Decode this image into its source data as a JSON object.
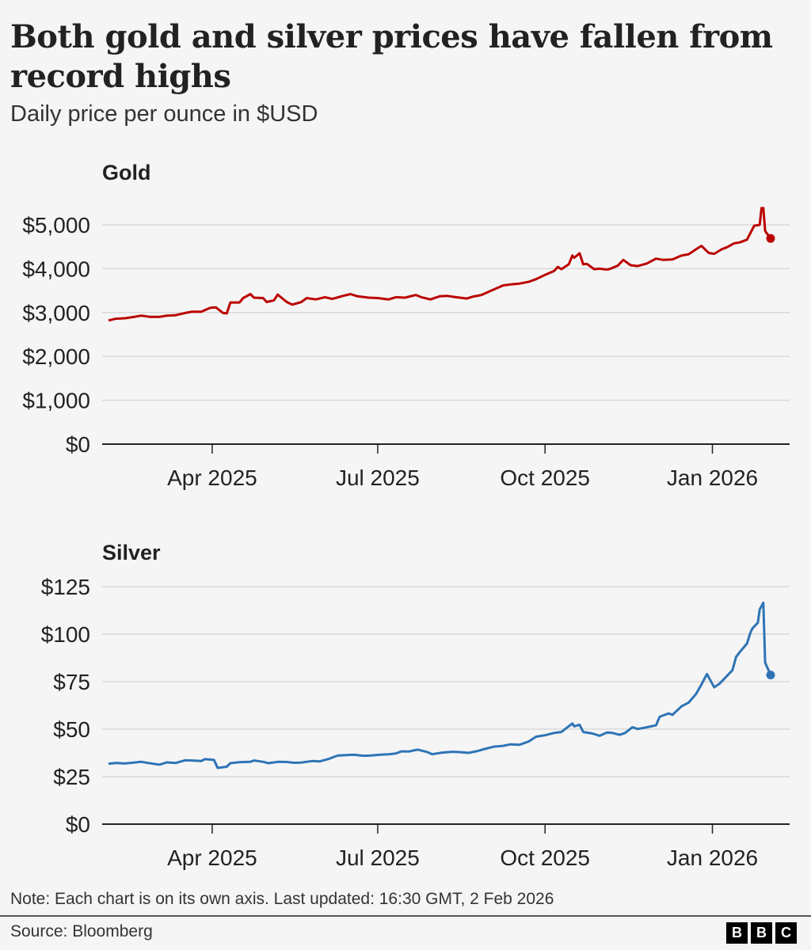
{
  "title": "Both gold and silver prices have fallen from record highs",
  "subtitle": "Daily price per ounce in $USD",
  "note": "Note: Each chart is on its own axis. Last updated: 16:30 GMT, 2 Feb 2026",
  "source": "Source: Bloomberg",
  "logo": [
    "B",
    "B",
    "C"
  ],
  "chart_data": [
    {
      "type": "line",
      "title": "Gold",
      "color": "#bb0000",
      "xlabel": "",
      "ylabel": "",
      "x_range": [
        "2025-02-03",
        "2026-02-02"
      ],
      "x_ticks": [
        {
          "date": "2025-04-01",
          "label": "Apr 2025"
        },
        {
          "date": "2025-07-01",
          "label": "Jul 2025"
        },
        {
          "date": "2025-10-01",
          "label": "Oct 2025"
        },
        {
          "date": "2026-01-01",
          "label": "Jan 2026"
        }
      ],
      "ylim": [
        0,
        5000
      ],
      "y_ticks": [
        {
          "value": 0,
          "label": "$0"
        },
        {
          "value": 1000,
          "label": "$1,000"
        },
        {
          "value": 2000,
          "label": "$2,000"
        },
        {
          "value": 3000,
          "label": "$3,000"
        },
        {
          "value": 4000,
          "label": "$4,000"
        },
        {
          "value": 5000,
          "label": "$5,000"
        }
      ],
      "grid": true,
      "end_marker": true,
      "series": [
        {
          "name": "Gold",
          "points": [
            [
              "2025-02-03",
              2820
            ],
            [
              "2025-02-07",
              2860
            ],
            [
              "2025-02-12",
              2870
            ],
            [
              "2025-02-17",
              2900
            ],
            [
              "2025-02-21",
              2930
            ],
            [
              "2025-02-26",
              2900
            ],
            [
              "2025-03-03",
              2900
            ],
            [
              "2025-03-07",
              2930
            ],
            [
              "2025-03-12",
              2940
            ],
            [
              "2025-03-17",
              2990
            ],
            [
              "2025-03-21",
              3020
            ],
            [
              "2025-03-26",
              3020
            ],
            [
              "2025-03-31",
              3110
            ],
            [
              "2025-04-03",
              3120
            ],
            [
              "2025-04-07",
              2990
            ],
            [
              "2025-04-09",
              2980
            ],
            [
              "2025-04-11",
              3230
            ],
            [
              "2025-04-16",
              3230
            ],
            [
              "2025-04-18",
              3330
            ],
            [
              "2025-04-22",
              3420
            ],
            [
              "2025-04-24",
              3340
            ],
            [
              "2025-04-29",
              3330
            ],
            [
              "2025-05-01",
              3240
            ],
            [
              "2025-05-05",
              3280
            ],
            [
              "2025-05-07",
              3410
            ],
            [
              "2025-05-12",
              3240
            ],
            [
              "2025-05-15",
              3180
            ],
            [
              "2025-05-20",
              3240
            ],
            [
              "2025-05-23",
              3330
            ],
            [
              "2025-05-28",
              3300
            ],
            [
              "2025-06-02",
              3350
            ],
            [
              "2025-06-06",
              3310
            ],
            [
              "2025-06-12",
              3380
            ],
            [
              "2025-06-16",
              3420
            ],
            [
              "2025-06-20",
              3370
            ],
            [
              "2025-06-26",
              3340
            ],
            [
              "2025-07-01",
              3330
            ],
            [
              "2025-07-07",
              3300
            ],
            [
              "2025-07-11",
              3350
            ],
            [
              "2025-07-16",
              3340
            ],
            [
              "2025-07-22",
              3400
            ],
            [
              "2025-07-25",
              3350
            ],
            [
              "2025-07-30",
              3300
            ],
            [
              "2025-08-04",
              3370
            ],
            [
              "2025-08-08",
              3380
            ],
            [
              "2025-08-13",
              3350
            ],
            [
              "2025-08-19",
              3320
            ],
            [
              "2025-08-22",
              3360
            ],
            [
              "2025-08-27",
              3400
            ],
            [
              "2025-09-02",
              3510
            ],
            [
              "2025-09-08",
              3620
            ],
            [
              "2025-09-12",
              3640
            ],
            [
              "2025-09-17",
              3660
            ],
            [
              "2025-09-22",
              3700
            ],
            [
              "2025-09-26",
              3760
            ],
            [
              "2025-10-01",
              3860
            ],
            [
              "2025-10-06",
              3950
            ],
            [
              "2025-10-08",
              4040
            ],
            [
              "2025-10-10",
              3990
            ],
            [
              "2025-10-14",
              4100
            ],
            [
              "2025-10-16",
              4300
            ],
            [
              "2025-10-17",
              4250
            ],
            [
              "2025-10-20",
              4350
            ],
            [
              "2025-10-22",
              4100
            ],
            [
              "2025-10-24",
              4110
            ],
            [
              "2025-10-28",
              3990
            ],
            [
              "2025-10-31",
              4000
            ],
            [
              "2025-11-04",
              3980
            ],
            [
              "2025-11-06",
              4000
            ],
            [
              "2025-11-10",
              4070
            ],
            [
              "2025-11-13",
              4200
            ],
            [
              "2025-11-17",
              4080
            ],
            [
              "2025-11-21",
              4060
            ],
            [
              "2025-11-26",
              4120
            ],
            [
              "2025-12-01",
              4230
            ],
            [
              "2025-12-05",
              4200
            ],
            [
              "2025-12-10",
              4210
            ],
            [
              "2025-12-15",
              4300
            ],
            [
              "2025-12-19",
              4330
            ],
            [
              "2025-12-24",
              4470
            ],
            [
              "2025-12-26",
              4520
            ],
            [
              "2025-12-30",
              4360
            ],
            [
              "2026-01-02",
              4340
            ],
            [
              "2026-01-06",
              4440
            ],
            [
              "2026-01-09",
              4490
            ],
            [
              "2026-01-13",
              4580
            ],
            [
              "2026-01-16",
              4600
            ],
            [
              "2026-01-20",
              4660
            ],
            [
              "2026-01-22",
              4820
            ],
            [
              "2026-01-24",
              4980
            ],
            [
              "2026-01-27",
              5000
            ],
            [
              "2026-01-28",
              5380
            ],
            [
              "2026-01-29",
              5380
            ],
            [
              "2026-01-30",
              4860
            ],
            [
              "2026-02-02",
              4690
            ]
          ]
        }
      ]
    },
    {
      "type": "line",
      "title": "Silver",
      "color": "#2e74b5",
      "xlabel": "",
      "ylabel": "",
      "x_range": [
        "2025-02-03",
        "2026-02-02"
      ],
      "x_ticks": [
        {
          "date": "2025-04-01",
          "label": "Apr 2025"
        },
        {
          "date": "2025-07-01",
          "label": "Jul 2025"
        },
        {
          "date": "2025-10-01",
          "label": "Oct 2025"
        },
        {
          "date": "2026-01-01",
          "label": "Jan 2026"
        }
      ],
      "ylim": [
        0,
        125
      ],
      "y_ticks": [
        {
          "value": 0,
          "label": "$0"
        },
        {
          "value": 25,
          "label": "$25"
        },
        {
          "value": 50,
          "label": "$50"
        },
        {
          "value": 75,
          "label": "$75"
        },
        {
          "value": 100,
          "label": "$100"
        },
        {
          "value": 125,
          "label": "$125"
        }
      ],
      "grid": true,
      "end_marker": true,
      "series": [
        {
          "name": "Silver",
          "points": [
            [
              "2025-02-03",
              31.8
            ],
            [
              "2025-02-07",
              32.2
            ],
            [
              "2025-02-12",
              31.9
            ],
            [
              "2025-02-17",
              32.4
            ],
            [
              "2025-02-21",
              32.8
            ],
            [
              "2025-02-26",
              32.0
            ],
            [
              "2025-03-03",
              31.3
            ],
            [
              "2025-03-07",
              32.5
            ],
            [
              "2025-03-12",
              32.2
            ],
            [
              "2025-03-17",
              33.6
            ],
            [
              "2025-03-21",
              33.5
            ],
            [
              "2025-03-26",
              33.2
            ],
            [
              "2025-03-28",
              34.2
            ],
            [
              "2025-04-02",
              33.8
            ],
            [
              "2025-04-04",
              29.6
            ],
            [
              "2025-04-09",
              30.2
            ],
            [
              "2025-04-11",
              32.1
            ],
            [
              "2025-04-16",
              32.6
            ],
            [
              "2025-04-22",
              32.8
            ],
            [
              "2025-04-24",
              33.5
            ],
            [
              "2025-04-29",
              32.8
            ],
            [
              "2025-05-02",
              32.1
            ],
            [
              "2025-05-07",
              32.8
            ],
            [
              "2025-05-12",
              32.7
            ],
            [
              "2025-05-16",
              32.3
            ],
            [
              "2025-05-20",
              32.4
            ],
            [
              "2025-05-26",
              33.2
            ],
            [
              "2025-05-30",
              33.0
            ],
            [
              "2025-06-04",
              34.3
            ],
            [
              "2025-06-09",
              36.1
            ],
            [
              "2025-06-13",
              36.3
            ],
            [
              "2025-06-18",
              36.5
            ],
            [
              "2025-06-23",
              36.0
            ],
            [
              "2025-06-27",
              36.1
            ],
            [
              "2025-07-02",
              36.5
            ],
            [
              "2025-07-07",
              36.8
            ],
            [
              "2025-07-11",
              37.2
            ],
            [
              "2025-07-14",
              38.3
            ],
            [
              "2025-07-18",
              38.2
            ],
            [
              "2025-07-23",
              39.2
            ],
            [
              "2025-07-28",
              38.0
            ],
            [
              "2025-07-31",
              36.8
            ],
            [
              "2025-08-05",
              37.6
            ],
            [
              "2025-08-11",
              38.1
            ],
            [
              "2025-08-15",
              37.9
            ],
            [
              "2025-08-20",
              37.5
            ],
            [
              "2025-08-25",
              38.5
            ],
            [
              "2025-08-29",
              39.6
            ],
            [
              "2025-09-03",
              40.8
            ],
            [
              "2025-09-08",
              41.2
            ],
            [
              "2025-09-12",
              42.0
            ],
            [
              "2025-09-17",
              41.8
            ],
            [
              "2025-09-22",
              43.5
            ],
            [
              "2025-09-26",
              46.0
            ],
            [
              "2025-10-01",
              46.8
            ],
            [
              "2025-10-06",
              48.0
            ],
            [
              "2025-10-10",
              48.5
            ],
            [
              "2025-10-14",
              51.5
            ],
            [
              "2025-10-16",
              53.0
            ],
            [
              "2025-10-17",
              51.5
            ],
            [
              "2025-10-20",
              52.3
            ],
            [
              "2025-10-22",
              48.5
            ],
            [
              "2025-10-27",
              47.7
            ],
            [
              "2025-10-31",
              46.5
            ],
            [
              "2025-11-04",
              48.2
            ],
            [
              "2025-11-07",
              48.0
            ],
            [
              "2025-11-11",
              47.0
            ],
            [
              "2025-11-14",
              48.0
            ],
            [
              "2025-11-18",
              51.0
            ],
            [
              "2025-11-21",
              50.1
            ],
            [
              "2025-11-26",
              51.0
            ],
            [
              "2025-12-01",
              52.0
            ],
            [
              "2025-12-03",
              56.5
            ],
            [
              "2025-12-08",
              58.3
            ],
            [
              "2025-12-10",
              57.5
            ],
            [
              "2025-12-15",
              62.0
            ],
            [
              "2025-12-19",
              64.0
            ],
            [
              "2025-12-23",
              68.5
            ],
            [
              "2025-12-26",
              73.5
            ],
            [
              "2025-12-29",
              79.0
            ],
            [
              "2025-12-31",
              75.5
            ],
            [
              "2026-01-02",
              72.0
            ],
            [
              "2026-01-05",
              74.0
            ],
            [
              "2026-01-09",
              78.0
            ],
            [
              "2026-01-12",
              81.0
            ],
            [
              "2026-01-14",
              88.0
            ],
            [
              "2026-01-16",
              90.5
            ],
            [
              "2026-01-20",
              95.0
            ],
            [
              "2026-01-22",
              101.0
            ],
            [
              "2026-01-23",
              103.0
            ],
            [
              "2026-01-26",
              106.0
            ],
            [
              "2026-01-27",
              113.0
            ],
            [
              "2026-01-29",
              116.5
            ],
            [
              "2026-01-30",
              85.0
            ],
            [
              "2026-02-02",
              78.5
            ]
          ]
        }
      ]
    }
  ]
}
